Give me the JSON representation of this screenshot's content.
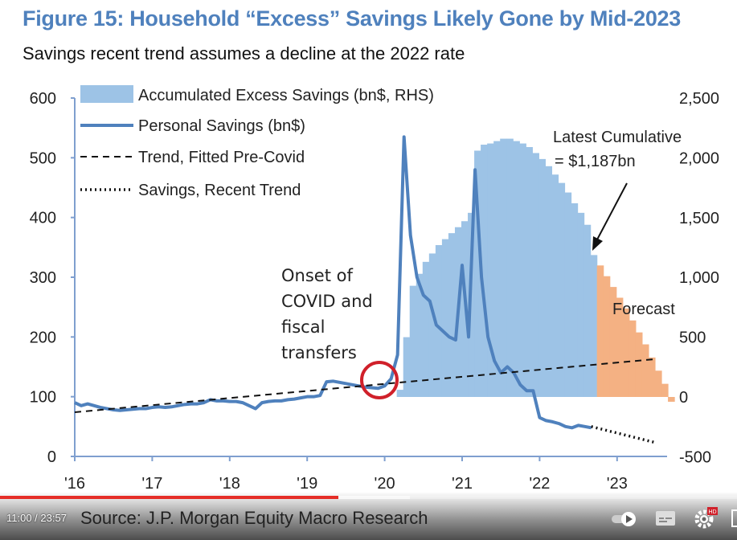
{
  "title": "Figure 15: Household “Excess” Savings Likely Gone by Mid-2023",
  "subtitle": "Savings recent trend assumes a decline at the 2022 rate",
  "chart_data": {
    "type": "bar+line",
    "title": "Figure 15: Household “Excess” Savings Likely Gone by Mid-2023",
    "subtitle": "Savings recent trend assumes a decline at the 2022 rate",
    "x_tick_labels": [
      "'16",
      "'17",
      "'18",
      "'19",
      "'20",
      "'21",
      "'22",
      "'23"
    ],
    "left_axis": {
      "ylim": [
        0,
        600
      ],
      "ticks": [
        "0",
        "100",
        "200",
        "300",
        "400",
        "500",
        "600"
      ]
    },
    "right_axis": {
      "ylim": [
        -500,
        2500
      ],
      "ticks": [
        "-500",
        "0",
        "500",
        "1,000",
        "1,500",
        "2,000",
        "2,500"
      ]
    },
    "legend_placement": "top-left",
    "legend": [
      {
        "label": "Accumulated Excess Savings (bn$, RHS)",
        "style": "area"
      },
      {
        "label": "Personal Savings (bn$)",
        "style": "solid"
      },
      {
        "label": "Trend, Fitted Pre-Covid",
        "style": "dashed"
      },
      {
        "label": "Savings, Recent Trend",
        "style": "dotted"
      }
    ],
    "series": [
      {
        "name": "Accumulated Excess Savings (bn$, RHS)",
        "axis": "right",
        "start": "2020-03",
        "color": "#9dc3e6",
        "values": [
          60,
          500,
          930,
          1030,
          1130,
          1200,
          1270,
          1320,
          1370,
          1420,
          1470,
          1540,
          2060,
          2110,
          2120,
          2140,
          2160,
          2160,
          2140,
          2120,
          2090,
          2040,
          1990,
          1930,
          1860,
          1790,
          1710,
          1620,
          1540,
          1440,
          1187
        ]
      },
      {
        "name": "Forecast",
        "axis": "right",
        "start": "2022-10",
        "color": "#f4b183",
        "values": [
          1100,
          1010,
          920,
          830,
          740,
          640,
          540,
          440,
          330,
          220,
          110,
          -40
        ]
      },
      {
        "name": "Personal Savings (bn$)",
        "axis": "left",
        "start": "2016-01",
        "color": "#4f81bd",
        "values": [
          90,
          85,
          88,
          85,
          82,
          80,
          78,
          77,
          78,
          79,
          80,
          80,
          82,
          83,
          82,
          83,
          85,
          87,
          88,
          88,
          90,
          95,
          93,
          93,
          92,
          92,
          90,
          85,
          80,
          90,
          92,
          93,
          93,
          95,
          96,
          98,
          100,
          100,
          102,
          125,
          126,
          124,
          122,
          120,
          118,
          116,
          115,
          114,
          118,
          130,
          170,
          535,
          370,
          300,
          270,
          260,
          220,
          210,
          200,
          195,
          320,
          200,
          480,
          300,
          200,
          160,
          140,
          150,
          140,
          120,
          110,
          110,
          65,
          60,
          58,
          55,
          50,
          48,
          52,
          50,
          48
        ]
      },
      {
        "name": "Trend, Fitted Pre-Covid",
        "axis": "left",
        "x": [
          "2016-01",
          "2023-07"
        ],
        "values": [
          74,
          163
        ]
      },
      {
        "name": "Savings, Recent Trend",
        "axis": "left",
        "x": [
          "2022-09",
          "2023-07"
        ],
        "values": [
          50,
          23
        ]
      }
    ],
    "annotations": [
      "Onset of",
      "COVID and",
      "fiscal",
      "transfers",
      "Latest Cumulative",
      "= $1,187bn",
      "Forecast"
    ]
  },
  "player": {
    "time": "11:00 / 23:57",
    "progress_percent": 45.9,
    "buffered_percent": 55.6,
    "source_text": "Source: J.P. Morgan Equity Macro Research",
    "hd_badge": "HD",
    "icons": [
      "autoplay-toggle-icon",
      "subtitles-icon",
      "settings-gear-icon",
      "fullscreen-icon"
    ]
  }
}
